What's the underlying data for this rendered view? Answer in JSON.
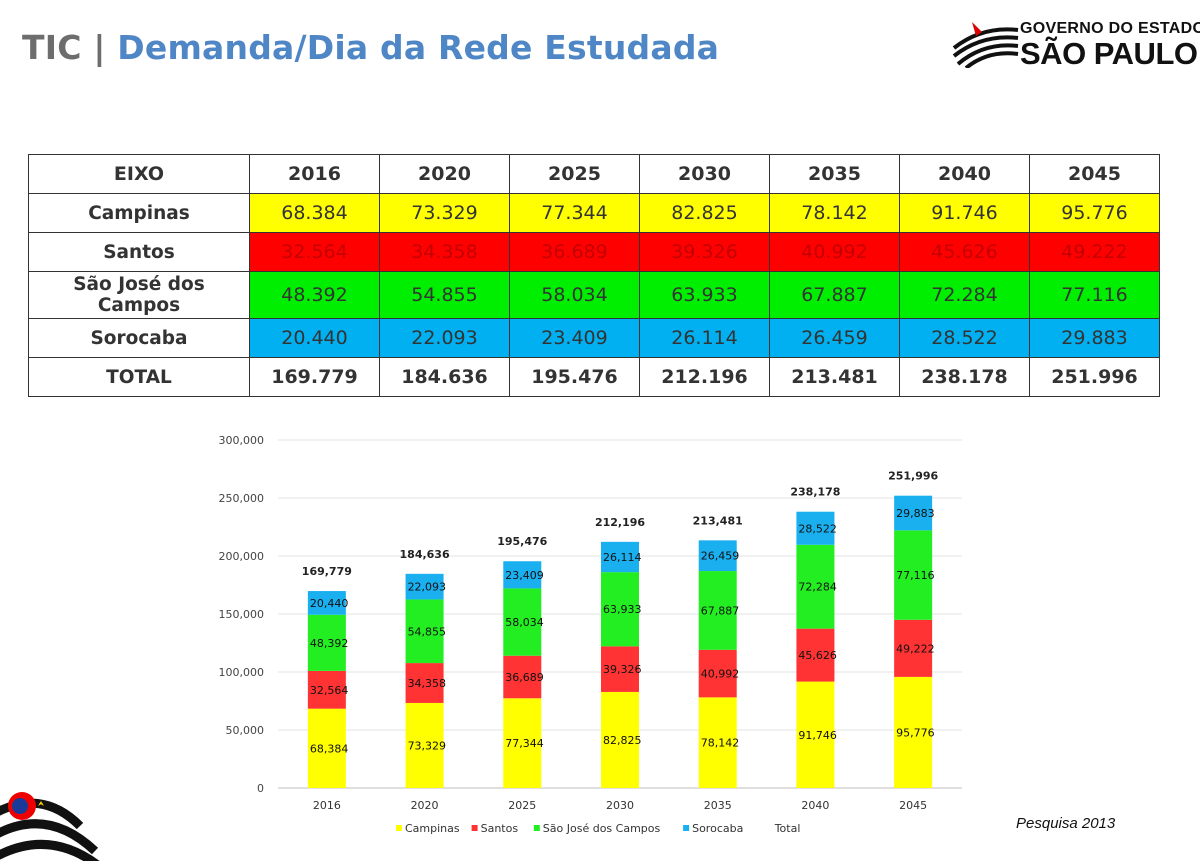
{
  "header": {
    "title_prefix": "TIC",
    "title_sep": "|",
    "title_main": "Demanda/Dia da Rede Estudada"
  },
  "logo": {
    "line1": "GOVERNO DO ESTADO",
    "line2": "SÃO PAULO"
  },
  "table": {
    "header_label": "EIXO",
    "years": [
      "2016",
      "2020",
      "2025",
      "2030",
      "2035",
      "2040",
      "2045"
    ],
    "rows": [
      {
        "label": "Campinas",
        "values": [
          "68.384",
          "73.329",
          "77.344",
          "82.825",
          "78.142",
          "91.746",
          "95.776"
        ]
      },
      {
        "label": "Santos",
        "values": [
          "32.564",
          "34.358",
          "36.689",
          "39.326",
          "40.992",
          "45.626",
          "49.222"
        ]
      },
      {
        "label_line1": "São José dos",
        "label_line2": "Campos",
        "values": [
          "48.392",
          "54.855",
          "58.034",
          "63.933",
          "67.887",
          "72.284",
          "77.116"
        ]
      },
      {
        "label": "Sorocaba",
        "values": [
          "20.440",
          "22.093",
          "23.409",
          "26.114",
          "26.459",
          "28.522",
          "29.883"
        ]
      },
      {
        "label": "TOTAL",
        "values": [
          "169.779",
          "184.636",
          "195.476",
          "212.196",
          "213.481",
          "238.178",
          "251.996"
        ]
      }
    ]
  },
  "footnote": "Pesquisa 2013",
  "chart_data": {
    "type": "bar",
    "stacked": true,
    "categories": [
      "2016",
      "2020",
      "2025",
      "2030",
      "2035",
      "2040",
      "2045"
    ],
    "series": [
      {
        "name": "Campinas",
        "color": "#ffff00",
        "values": [
          68384,
          73329,
          77344,
          82825,
          78142,
          91746,
          95776
        ],
        "labels": [
          "68,384",
          "73,329",
          "77,344",
          "82,825",
          "78,142",
          "91,746",
          "95,776"
        ]
      },
      {
        "name": "Santos",
        "color": "#ff3333",
        "values": [
          32564,
          34358,
          36689,
          39326,
          40992,
          45626,
          49222
        ],
        "labels": [
          "32,564",
          "34,358",
          "36,689",
          "39,326",
          "40,992",
          "45,626",
          "49,222"
        ]
      },
      {
        "name": "São José dos Campos",
        "color": "#22ee22",
        "values": [
          48392,
          54855,
          58034,
          63933,
          67887,
          72284,
          77116
        ],
        "labels": [
          "48,392",
          "54,855",
          "58,034",
          "63,933",
          "67,887",
          "72,284",
          "77,116"
        ]
      },
      {
        "name": "Sorocaba",
        "color": "#1ab0f0",
        "values": [
          20440,
          22093,
          23409,
          26114,
          26459,
          28522,
          29883
        ],
        "labels": [
          "20,440",
          "22,093",
          "23,409",
          "26,114",
          "26,459",
          "28,522",
          "29,883"
        ]
      }
    ],
    "totals": {
      "name": "Total",
      "labels": [
        "169,779",
        "184,636",
        "195,476",
        "212,196",
        "213,481",
        "238,178",
        "251,996"
      ]
    },
    "ylim": [
      0,
      300000
    ],
    "yticks": [
      0,
      50000,
      100000,
      150000,
      200000,
      250000,
      300000
    ],
    "ytick_labels": [
      "0",
      "50,000",
      "100,000",
      "150,000",
      "200,000",
      "250,000",
      "300,000"
    ],
    "grid": true,
    "legend_position": "bottom"
  }
}
